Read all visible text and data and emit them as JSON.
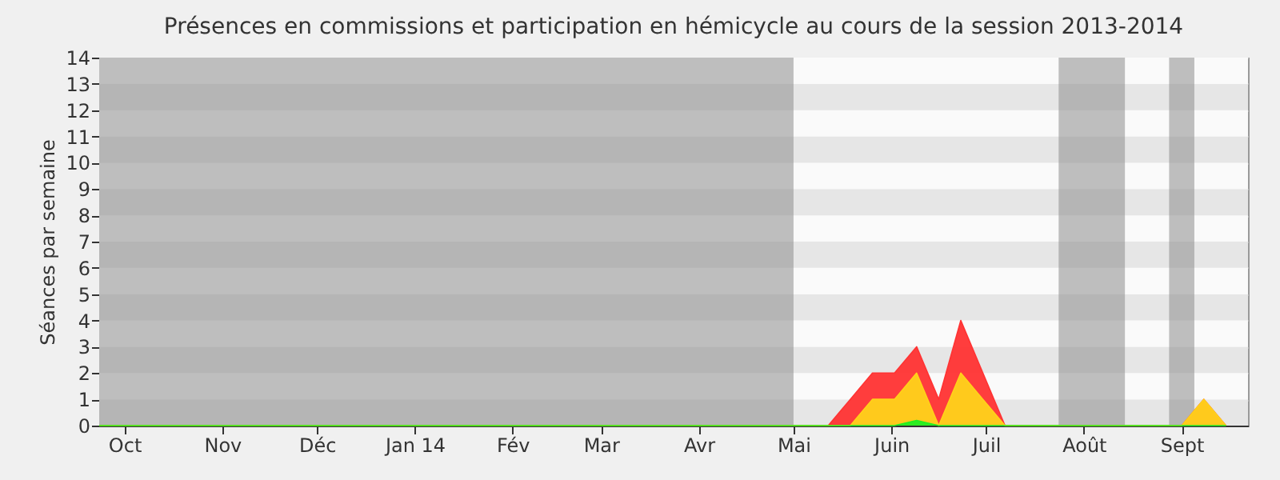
{
  "chart_data": {
    "type": "area",
    "title": "Présences en commissions et participation en hémicycle au cours de la session 2013-2014",
    "ylabel": "Séances par semaine",
    "x": [
      "2013-09-23",
      "2013-09-30",
      "2013-10-07",
      "2013-10-14",
      "2013-10-21",
      "2013-10-28",
      "2013-11-04",
      "2013-11-11",
      "2013-11-18",
      "2013-11-25",
      "2013-12-02",
      "2013-12-09",
      "2013-12-16",
      "2013-12-23",
      "2013-12-30",
      "2014-01-06",
      "2014-01-13",
      "2014-01-20",
      "2014-01-27",
      "2014-02-03",
      "2014-02-10",
      "2014-02-17",
      "2014-02-24",
      "2014-03-03",
      "2014-03-10",
      "2014-03-17",
      "2014-03-24",
      "2014-03-31",
      "2014-04-07",
      "2014-04-14",
      "2014-04-21",
      "2014-04-28",
      "2014-05-05",
      "2014-05-12",
      "2014-05-19",
      "2014-05-26",
      "2014-06-02",
      "2014-06-09",
      "2014-06-16",
      "2014-06-23",
      "2014-06-30",
      "2014-07-07",
      "2014-07-14",
      "2014-07-21",
      "2014-07-28",
      "2014-08-04",
      "2014-08-11",
      "2014-08-18",
      "2014-08-25",
      "2014-09-01",
      "2014-09-08",
      "2014-09-15"
    ],
    "series": [
      {
        "color": "#ff3333",
        "values": [
          0,
          0,
          0,
          0,
          0,
          0,
          0,
          0,
          0,
          0,
          0,
          0,
          0,
          0,
          0,
          0,
          0,
          0,
          0,
          0,
          0,
          0,
          0,
          0,
          0,
          0,
          0,
          0,
          0,
          0,
          0,
          0,
          0,
          0,
          1,
          2,
          2,
          3,
          1,
          4,
          2,
          0,
          0,
          0,
          0,
          0,
          0,
          0,
          0,
          0,
          1,
          0
        ]
      },
      {
        "color": "#ffd21a",
        "values": [
          0,
          0,
          0,
          0,
          0,
          0,
          0,
          0,
          0,
          0,
          0,
          0,
          0,
          0,
          0,
          0,
          0,
          0,
          0,
          0,
          0,
          0,
          0,
          0,
          0,
          0,
          0,
          0,
          0,
          0,
          0,
          0,
          0,
          0,
          0,
          1,
          1,
          2,
          0,
          2,
          1,
          0,
          0,
          0,
          0,
          0,
          0,
          0,
          0,
          0,
          1,
          0
        ]
      },
      {
        "color": "#22ee22",
        "values": [
          0,
          0,
          0,
          0,
          0,
          0,
          0,
          0,
          0,
          0,
          0,
          0,
          0,
          0,
          0,
          0,
          0,
          0,
          0,
          0,
          0,
          0,
          0,
          0,
          0,
          0,
          0,
          0,
          0,
          0,
          0,
          0,
          0,
          0,
          0,
          0,
          0,
          0.2,
          0,
          0,
          0,
          0,
          0,
          0,
          0,
          0,
          0,
          0,
          0,
          0,
          0,
          0
        ]
      }
    ],
    "bands": [
      {
        "axis": "x",
        "from": "2013-09-23",
        "to": "2014-05-01",
        "color": "#8c8c8c"
      },
      {
        "axis": "x",
        "from": "2014-07-24",
        "to": "2014-08-14",
        "color": "#8c8c8c"
      },
      {
        "axis": "x",
        "from": "2014-08-28",
        "to": "2014-09-05",
        "color": "#8c8c8c"
      }
    ],
    "xlim": [
      "2013-09-23",
      "2014-09-22"
    ],
    "xticks": [
      {
        "value": "2013-10-01",
        "label": "Oct"
      },
      {
        "value": "2013-11-01",
        "label": "Nov"
      },
      {
        "value": "2013-12-01",
        "label": "Déc"
      },
      {
        "value": "2014-01-01",
        "label": "Jan 14"
      },
      {
        "value": "2014-02-01",
        "label": "Fév"
      },
      {
        "value": "2014-03-01",
        "label": "Mar"
      },
      {
        "value": "2014-04-01",
        "label": "Avr"
      },
      {
        "value": "2014-05-01",
        "label": "Mai"
      },
      {
        "value": "2014-06-01",
        "label": "Juin"
      },
      {
        "value": "2014-07-01",
        "label": "Juil"
      },
      {
        "value": "2014-08-01",
        "label": "Août"
      },
      {
        "value": "2014-09-01",
        "label": "Sept"
      }
    ],
    "ylim": [
      0,
      14
    ],
    "yticks": [
      0,
      1,
      2,
      3,
      4,
      5,
      6,
      7,
      8,
      9,
      10,
      11,
      12,
      13,
      14
    ],
    "grid": "y"
  }
}
